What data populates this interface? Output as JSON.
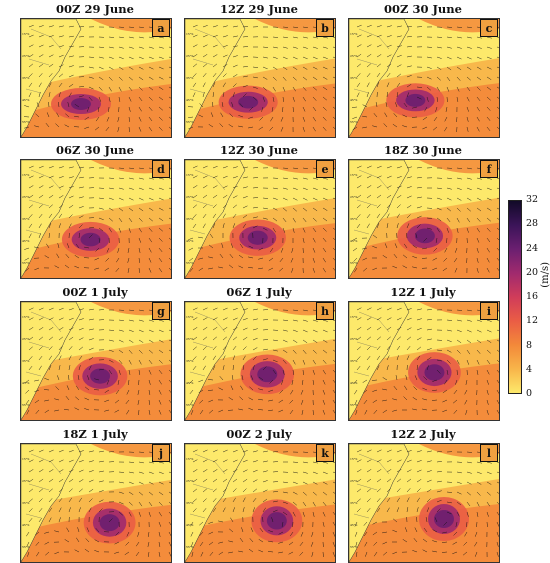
{
  "panels": [
    {
      "title": "00Z 29 June",
      "letter": "a"
    },
    {
      "title": "12Z 29 June",
      "letter": "b"
    },
    {
      "title": "00Z 30 June",
      "letter": "c"
    },
    {
      "title": "06Z 30 June",
      "letter": "d"
    },
    {
      "title": "12Z 30 June",
      "letter": "e"
    },
    {
      "title": "18Z 30 June",
      "letter": "f"
    },
    {
      "title": "00Z 1 July",
      "letter": "g"
    },
    {
      "title": "06Z 1 July",
      "letter": "h"
    },
    {
      "title": "12Z 1 July",
      "letter": "i"
    },
    {
      "title": "18Z 1 July",
      "letter": "j"
    },
    {
      "title": "00Z 2 July",
      "letter": "k"
    },
    {
      "title": "12Z 2 July",
      "letter": "l"
    }
  ],
  "colorbar": {
    "unit": "(m/s)",
    "ticks": [
      "32",
      "28",
      "24",
      "20",
      "16",
      "12",
      "8",
      "4",
      "0"
    ],
    "colors": [
      "#fde96b",
      "#f8b54a",
      "#f3893a",
      "#ea5d45",
      "#d03c5a",
      "#a02a6e",
      "#6b1f70",
      "#3b1458",
      "#120a28"
    ]
  }
}
